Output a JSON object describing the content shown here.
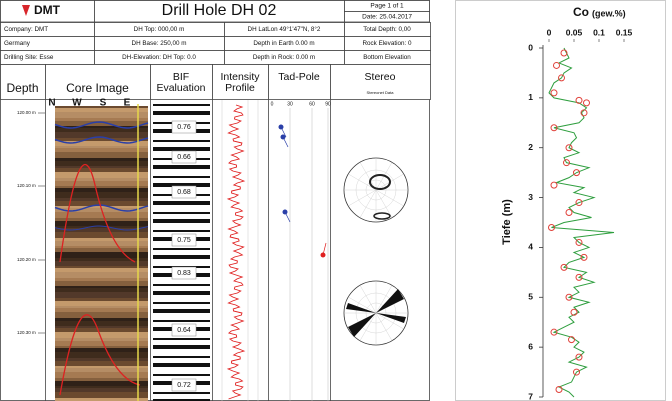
{
  "log": {
    "logo": "DMT",
    "title": "Drill Hole DH 02",
    "page": "Page 1 of 1",
    "date": "Date: 25.04.2017",
    "info": [
      [
        "Company: DMT",
        "DH Top: 000,00 m",
        "DH LatLon 49°1'47\"N, 8°2",
        "Total Depth: 0,00"
      ],
      [
        "Germany",
        "DH Base: 250,00 m",
        "Depth in Earth 0.00 m",
        "Rock Elevation: 0"
      ],
      [
        "Drilling Site: Esse",
        "DH-Elevation: DH Top: 0.0",
        "Depth in Rock: 0.00 m",
        "Bottom Elevation"
      ]
    ],
    "columns": [
      "Depth",
      "Core Image",
      "BIF Evaluation",
      "Intensity Profile",
      "Tad-Pole",
      "Stereo"
    ],
    "orientation": [
      "N",
      "W",
      "S",
      "E"
    ],
    "tadpole_scale": [
      "0",
      "30",
      "60",
      "90"
    ],
    "stereo_subtitle": "Stereonet Data",
    "depth_labels": [
      "120.00 m",
      "120.10 m",
      "120.20 m",
      "120.30 m"
    ],
    "bif_values": [
      0.76,
      0.66,
      0.68,
      0.75,
      0.83,
      0.64,
      0.72
    ]
  },
  "chart_data": {
    "type": "line",
    "title": "Co",
    "title_unit": "(gew.%)",
    "y_label": "Tiefe (m)",
    "xlim": [
      0,
      0.17
    ],
    "xticks": [
      0,
      0.05,
      0.1,
      0.15
    ],
    "ylim": [
      0,
      7
    ],
    "yticks": [
      0,
      1,
      2,
      3,
      4,
      5,
      6,
      7
    ],
    "depths": [
      0,
      0.1,
      0.2,
      0.3,
      0.4,
      0.5,
      0.6,
      0.7,
      0.8,
      0.9,
      1,
      1.1,
      1.2,
      1.3,
      1.4,
      1.5,
      1.6,
      1.7,
      1.8,
      1.9,
      2,
      2.1,
      2.2,
      2.3,
      2.4,
      2.5,
      2.6,
      2.7,
      2.8,
      2.9,
      3,
      3.1,
      3.2,
      3.3,
      3.4,
      3.5,
      3.6,
      3.7,
      3.8,
      3.9,
      4,
      4.1,
      4.2,
      4.3,
      4.4,
      4.5,
      4.6,
      4.7,
      4.8,
      4.9,
      5,
      5.1,
      5.2,
      5.3,
      5.4,
      5.5,
      5.6,
      5.7,
      5.8,
      5.9,
      6,
      6.1,
      6.2,
      6.3,
      6.4,
      6.5,
      6.6,
      6.7,
      6.8,
      6.9,
      7
    ],
    "values": [
      0.03,
      0.035,
      0.04,
      0.02,
      0.045,
      0.03,
      0.025,
      0.01,
      0.005,
      0,
      0.01,
      0.06,
      0.075,
      0.065,
      0.07,
      0.06,
      0.01,
      0.05,
      0.055,
      0.045,
      0.04,
      0.06,
      0.03,
      0.035,
      0.08,
      0.055,
      0.04,
      0.015,
      0.07,
      0.05,
      0.09,
      0.06,
      0.04,
      0.05,
      0.085,
      0.03,
      0.005,
      0.13,
      0.05,
      0.06,
      0.08,
      0.05,
      0.07,
      0.04,
      0.03,
      0.075,
      0.06,
      0.09,
      0.05,
      0.06,
      0.04,
      0.08,
      0.05,
      0.06,
      0.04,
      0.05,
      0.03,
      0.01,
      0.045,
      0.06,
      0.05,
      0.07,
      0.06,
      0.04,
      0.075,
      0.055,
      0.05,
      0.045,
      0.02,
      0.04,
      0.05
    ],
    "color": "#2e9e3e",
    "sample_depths": [
      0.1,
      0.35,
      0.6,
      0.9,
      1.05,
      1.1,
      1.3,
      1.6,
      2,
      2.3,
      2.5,
      2.75,
      3.1,
      3.3,
      3.6,
      3.9,
      4.2,
      4.4,
      4.6,
      5,
      5.3,
      5.7,
      5.85,
      6.2,
      6.5,
      6.85
    ],
    "sample_values": [
      0.03,
      0.015,
      0.025,
      0.01,
      0.06,
      0.075,
      0.07,
      0.01,
      0.04,
      0.035,
      0.055,
      0.01,
      0.06,
      0.04,
      0.005,
      0.06,
      0.07,
      0.03,
      0.06,
      0.04,
      0.05,
      0.01,
      0.045,
      0.06,
      0.055,
      0.02
    ],
    "sample_color": "#e0413a"
  }
}
